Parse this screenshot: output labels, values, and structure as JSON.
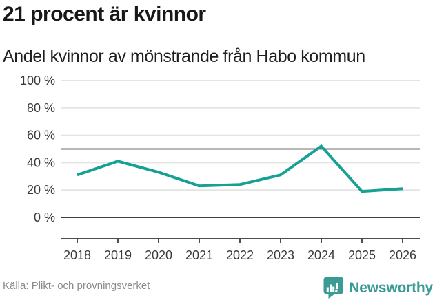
{
  "header": {
    "title": "21 procent är kvinnor",
    "subtitle": "Andel kvinnor av mönstrande från Habo kommun"
  },
  "footer": {
    "source": "Källa: Plikt- och prövningsverket",
    "brand_name": "Newsworthy"
  },
  "colors": {
    "line": "#17a094",
    "brand": "#3a9b94",
    "grid_light": "#e4e4e4",
    "reference_line": "#707070",
    "zero_line": "#3f3f3f",
    "axis": "#4d4d4d",
    "tick_text": "#3a3a3a",
    "source_text": "#8b8b8b"
  },
  "chart_data": {
    "type": "line",
    "title": "21 procent är kvinnor",
    "subtitle": "Andel kvinnor av mönstrande från Habo kommun",
    "x": [
      "2018",
      "2019",
      "2020",
      "2021",
      "2022",
      "2023",
      "2024",
      "2025",
      "2026"
    ],
    "series": [
      {
        "name": "Andel kvinnor av mönstrande från Habo kommun",
        "color": "#17a094",
        "values": [
          31,
          41,
          33,
          23,
          24,
          31,
          52,
          19,
          21
        ]
      }
    ],
    "unit": "%",
    "xlabel": "",
    "ylabel": "",
    "ylim": [
      0,
      100
    ],
    "yticks": [
      0,
      20,
      40,
      60,
      80,
      100
    ],
    "ytick_labels": [
      "0 %",
      "20 %",
      "40 %",
      "60 %",
      "80 %",
      "100 %"
    ],
    "reference_line_y": 50,
    "grid": true,
    "legend": false,
    "latest_value": 21
  }
}
